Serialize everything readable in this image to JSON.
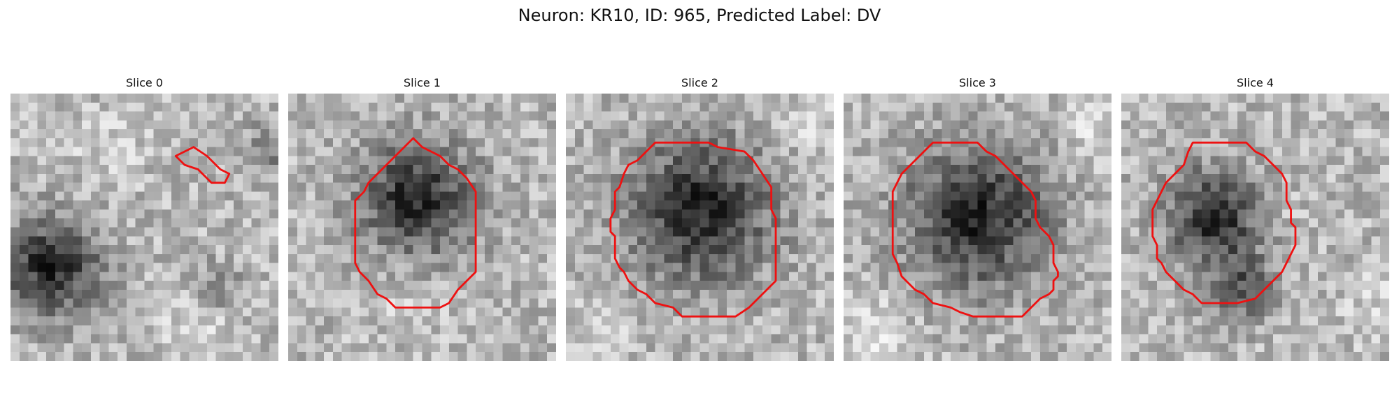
{
  "figure": {
    "title": "Neuron: KR10, ID: 965, Predicted Label: DV"
  },
  "panels": [
    {
      "title": "Slice 0",
      "dark_blobs": [
        [
          4.5,
          19.5,
          5.5,
          1.0
        ],
        [
          23,
          22,
          3,
          0.4
        ],
        [
          29,
          6,
          2.5,
          0.5
        ]
      ],
      "bright_blobs": [
        [
          21,
          25,
          4,
          0.6
        ],
        [
          11,
          6,
          4,
          0.4
        ]
      ],
      "contour": [
        [
          19.5,
          6.5
        ],
        [
          20.5,
          6
        ],
        [
          22,
          7
        ],
        [
          23.5,
          8.5
        ],
        [
          24.5,
          9
        ],
        [
          24,
          10
        ],
        [
          22.5,
          10
        ],
        [
          21,
          8.5
        ],
        [
          19.5,
          8
        ],
        [
          18.5,
          7
        ]
      ]
    },
    {
      "title": "Slice 1",
      "dark_blobs": [
        [
          14.5,
          12,
          6.5,
          1.0
        ]
      ],
      "bright_blobs": [
        [
          14,
          23,
          5,
          0.3
        ]
      ],
      "contour": [
        [
          14,
          5
        ],
        [
          15,
          6
        ],
        [
          16,
          6.5
        ],
        [
          17,
          7
        ],
        [
          18,
          8
        ],
        [
          19,
          8.5
        ],
        [
          20,
          9.5
        ],
        [
          21,
          11
        ],
        [
          21,
          20
        ],
        [
          20,
          21
        ],
        [
          19,
          22
        ],
        [
          18,
          23.5
        ],
        [
          17,
          24
        ],
        [
          12,
          24
        ],
        [
          11,
          23
        ],
        [
          10,
          22.5
        ],
        [
          9,
          21
        ],
        [
          8,
          20
        ],
        [
          7.5,
          19
        ],
        [
          7.5,
          12
        ],
        [
          8.5,
          11
        ],
        [
          9,
          10
        ],
        [
          10,
          9
        ],
        [
          11,
          8
        ],
        [
          12,
          7
        ],
        [
          13,
          6
        ]
      ]
    },
    {
      "title": "Slice 2",
      "dark_blobs": [
        [
          15,
          13,
          8,
          1.0
        ]
      ],
      "bright_blobs": [
        [
          3,
          27,
          4,
          0.4
        ],
        [
          27,
          3,
          4,
          0.4
        ]
      ],
      "contour": [
        [
          10,
          5.5
        ],
        [
          16,
          5.5
        ],
        [
          17,
          6
        ],
        [
          20,
          6.5
        ],
        [
          21,
          7.5
        ],
        [
          22,
          9
        ],
        [
          23,
          10.5
        ],
        [
          23,
          13
        ],
        [
          23.5,
          14
        ],
        [
          23.5,
          21
        ],
        [
          22.5,
          22
        ],
        [
          21.5,
          23
        ],
        [
          20.5,
          24
        ],
        [
          19,
          25
        ],
        [
          13,
          25
        ],
        [
          12,
          24
        ],
        [
          10,
          23.5
        ],
        [
          9,
          22.5
        ],
        [
          8,
          22
        ],
        [
          7,
          21
        ],
        [
          6.5,
          20
        ],
        [
          6,
          19.5
        ],
        [
          5.5,
          18.5
        ],
        [
          5.5,
          16
        ],
        [
          5,
          15.5
        ],
        [
          5,
          14
        ],
        [
          5.5,
          13
        ],
        [
          5.5,
          11
        ],
        [
          6,
          10.5
        ],
        [
          6.5,
          9
        ],
        [
          7,
          8
        ],
        [
          8,
          7.5
        ],
        [
          9,
          6.5
        ]
      ]
    },
    {
      "title": "Slice 3",
      "dark_blobs": [
        [
          15,
          14,
          8,
          1.0
        ]
      ],
      "bright_blobs": [
        [
          3,
          27,
          5,
          0.45
        ],
        [
          28,
          4,
          4,
          0.4
        ]
      ],
      "contour": [
        [
          10,
          5.5
        ],
        [
          15,
          5.5
        ],
        [
          16,
          6.5
        ],
        [
          17,
          7
        ],
        [
          18,
          8
        ],
        [
          19,
          9
        ],
        [
          20,
          10
        ],
        [
          21,
          11
        ],
        [
          21.5,
          12
        ],
        [
          21.5,
          14
        ],
        [
          22,
          15
        ],
        [
          23,
          16
        ],
        [
          23.5,
          17
        ],
        [
          23.5,
          19
        ],
        [
          24,
          20
        ],
        [
          24,
          20.5
        ],
        [
          23.5,
          21
        ],
        [
          23.5,
          22
        ],
        [
          23,
          22.5
        ],
        [
          22,
          23
        ],
        [
          21,
          24
        ],
        [
          20,
          25
        ],
        [
          14.5,
          25
        ],
        [
          13,
          24.5
        ],
        [
          12,
          24
        ],
        [
          10,
          23.5
        ],
        [
          9,
          22.5
        ],
        [
          8,
          22
        ],
        [
          7,
          21
        ],
        [
          6.5,
          20.5
        ],
        [
          6,
          19
        ],
        [
          5.5,
          18
        ],
        [
          5.5,
          11
        ],
        [
          6,
          10
        ],
        [
          6.5,
          9
        ],
        [
          7.5,
          8
        ],
        [
          8.5,
          7
        ],
        [
          9.5,
          6
        ]
      ]
    },
    {
      "title": "Slice 4",
      "dark_blobs": [
        [
          10.5,
          14,
          5.5,
          1.0
        ],
        [
          13.5,
          22,
          3.5,
          0.6
        ]
      ],
      "bright_blobs": [
        [
          17,
          13,
          3,
          0.5
        ],
        [
          28,
          24,
          4,
          0.35
        ]
      ],
      "contour": [
        [
          8,
          5.5
        ],
        [
          14,
          5.5
        ],
        [
          15,
          6.5
        ],
        [
          16,
          7
        ],
        [
          17,
          8
        ],
        [
          18,
          9
        ],
        [
          18.5,
          10
        ],
        [
          18.5,
          12
        ],
        [
          19,
          13
        ],
        [
          19,
          14.5
        ],
        [
          19.5,
          15
        ],
        [
          19.5,
          17
        ],
        [
          19,
          18
        ],
        [
          18.5,
          19
        ],
        [
          18,
          20
        ],
        [
          17,
          21
        ],
        [
          16,
          22
        ],
        [
          15,
          23
        ],
        [
          13,
          23.5
        ],
        [
          9,
          23.5
        ],
        [
          8,
          22.5
        ],
        [
          7,
          22
        ],
        [
          6,
          21
        ],
        [
          5,
          20
        ],
        [
          4.5,
          19
        ],
        [
          4,
          18.5
        ],
        [
          4,
          17
        ],
        [
          3.5,
          16
        ],
        [
          3.5,
          13
        ],
        [
          4,
          12
        ],
        [
          4.5,
          11
        ],
        [
          5,
          10
        ],
        [
          6,
          9
        ],
        [
          7,
          8
        ],
        [
          7.5,
          6.5
        ]
      ]
    }
  ]
}
